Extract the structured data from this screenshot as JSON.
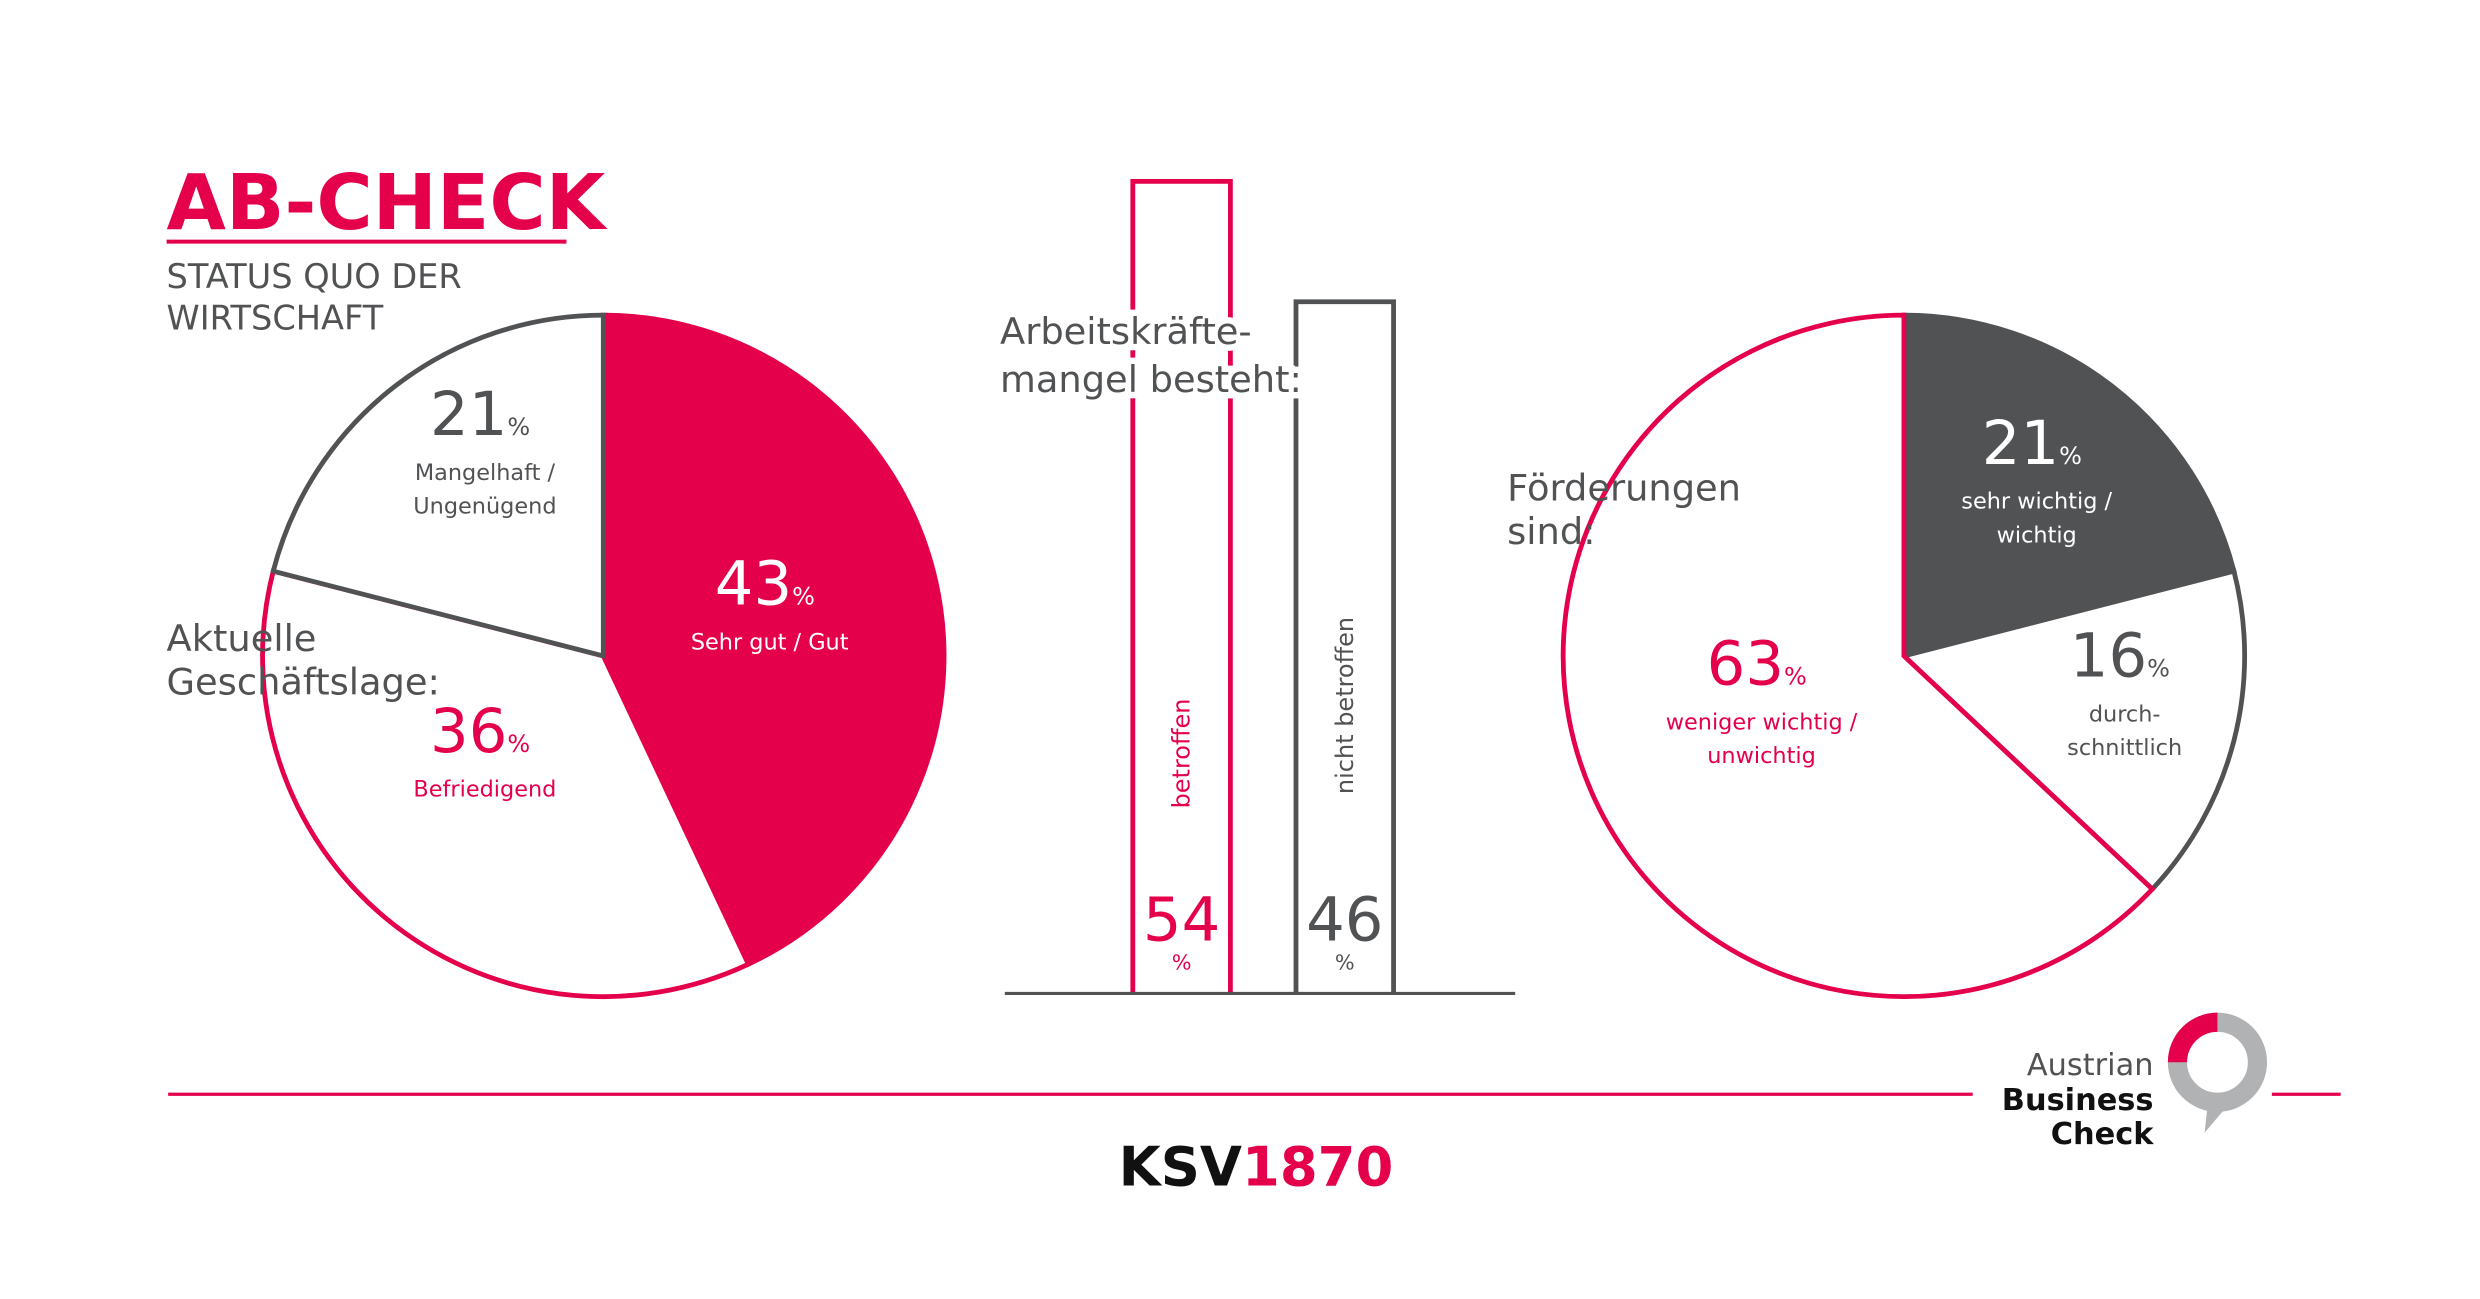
{
  "header": {
    "title": "AB-CHECK",
    "subtitle": "STATUS QUO DER\nWIRTSCHAFT"
  },
  "chart_data": [
    {
      "type": "pie",
      "title": "Aktuelle\nGeschäftslage:",
      "unit": "%",
      "categories": [
        "Sehr gut / Gut",
        "Befriedigend",
        "Mangelhaft /\nUngenügend"
      ],
      "values": [
        43,
        36,
        21
      ],
      "colors": [
        "#e4004b",
        "#e4004b",
        "#505254"
      ],
      "filled": [
        true,
        false,
        false
      ]
    },
    {
      "type": "bar",
      "title": "Arbeitskräfte-\nmangel besteht:",
      "unit": "%",
      "categories": [
        "betroffen",
        "nicht betroffen"
      ],
      "values": [
        54,
        46
      ],
      "colors": [
        "#e4004b",
        "#505254"
      ]
    },
    {
      "type": "pie",
      "title": "Förderungen\nsind:",
      "unit": "%",
      "categories": [
        "sehr wichtig /\nwichtig",
        "durch-\nschnittlich",
        "weniger wichtig /\nunwichtig"
      ],
      "values": [
        21,
        16,
        63
      ],
      "colors": [
        "#505254",
        "#505254",
        "#e4004b"
      ],
      "filled": [
        true,
        false,
        false
      ]
    }
  ],
  "footer": {
    "brand": [
      "KSV",
      "1870"
    ],
    "logo": [
      "Austrian",
      "Business",
      "Check"
    ]
  }
}
